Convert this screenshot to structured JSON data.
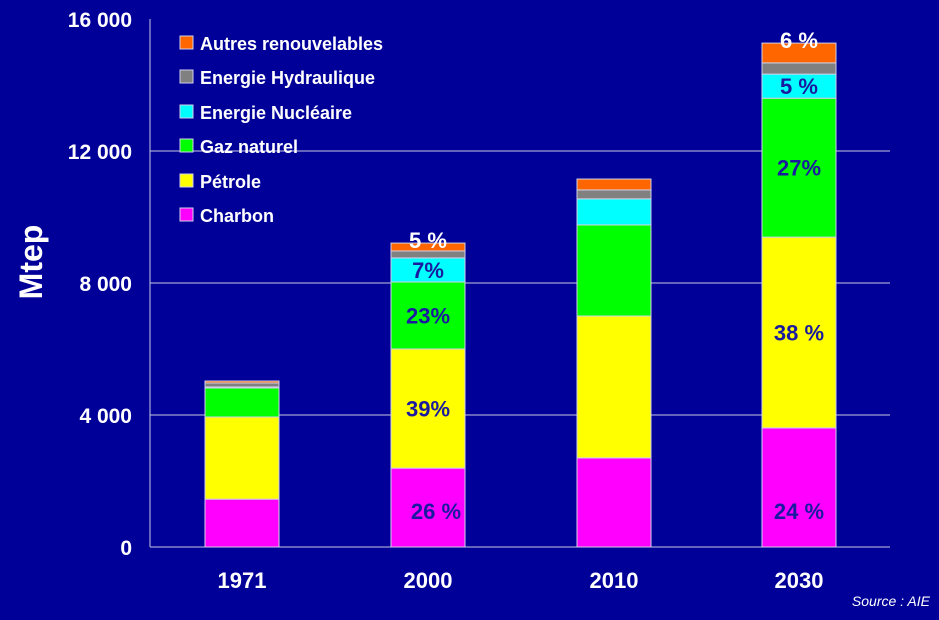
{
  "chart_data": {
    "type": "bar",
    "stacked": true,
    "title": "",
    "xlabel": "",
    "ylabel": "Mtep",
    "ylim": [
      0,
      16000
    ],
    "yticks": [
      0,
      4000,
      8000,
      12000,
      16000
    ],
    "ytick_labels": [
      "0",
      "4 000",
      "8 000",
      "12 000",
      "16 000"
    ],
    "grid": true,
    "legend_position": "top-left",
    "categories": [
      "1971",
      "2000",
      "2010",
      "2030"
    ],
    "series": [
      {
        "name": "Charbon",
        "color": "#ff00ff",
        "values": [
          1450,
          2390,
          2700,
          3610
        ],
        "labels": [
          "",
          "26 %",
          "",
          "24 %"
        ]
      },
      {
        "name": "Pétrole",
        "color": "#ffff00",
        "values": [
          2490,
          3610,
          4300,
          5780
        ],
        "labels": [
          "",
          "39%",
          "",
          "38 %"
        ]
      },
      {
        "name": "Gaz naturel",
        "color": "#00ff00",
        "values": [
          880,
          2030,
          2760,
          4210
        ],
        "labels": [
          "",
          "23%",
          "",
          "27%"
        ]
      },
      {
        "name": "Energie Nucléaire",
        "color": "#00ffff",
        "values": [
          30,
          730,
          790,
          730
        ],
        "labels": [
          "",
          "7%",
          "",
          "5 %"
        ]
      },
      {
        "name": "Energie Hydraulique",
        "color": "#808080",
        "values": [
          120,
          210,
          270,
          340
        ],
        "labels": [
          "",
          "",
          "",
          ""
        ]
      },
      {
        "name": "Autres renouvelables",
        "color": "#ff6600",
        "values": [
          60,
          240,
          330,
          600
        ],
        "labels": [
          "",
          "5 %",
          "",
          "6 %"
        ]
      }
    ],
    "source": "Source : AIE"
  }
}
